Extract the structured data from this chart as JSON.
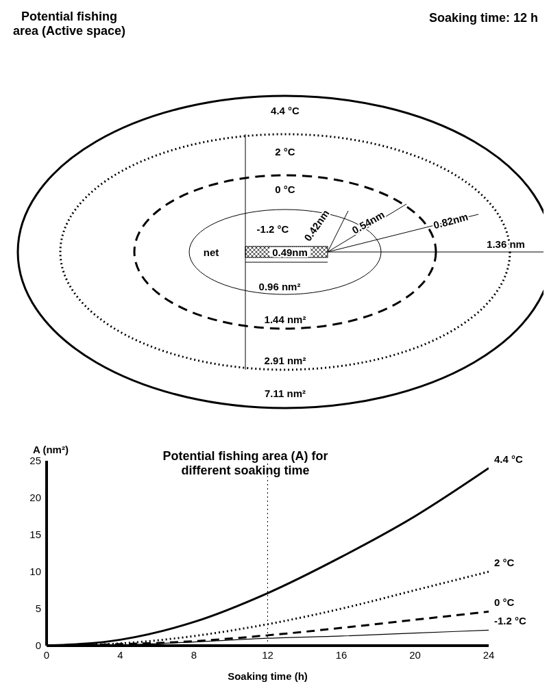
{
  "chart_data": [
    {
      "type": "other",
      "title": "Potential fishing area (Active space)",
      "subtitle": "Soaking time: 12 h",
      "annotations": [
        "4.4 °C",
        "2 °C",
        "0 °C",
        "-1.2 °C",
        "net",
        "0.49nm",
        "0.42nm",
        "0.54nm",
        "0.82nm",
        "1.36 nm",
        "0.96 nm²",
        "1.44 nm²",
        "2.91 nm²",
        "7.11 nm²"
      ]
    },
    {
      "type": "line",
      "title": "Potential fishing area (A) for different soaking time",
      "xlabel": "Soaking time (h)",
      "ylabel": "A (nm²)",
      "x": [
        0,
        4,
        8,
        12,
        16,
        20,
        24
      ],
      "xlim": [
        0,
        24
      ],
      "xticks": [
        0,
        4,
        8,
        12,
        16,
        20,
        24
      ],
      "ylim": [
        0,
        25
      ],
      "yticks": [
        0,
        5,
        10,
        15,
        20,
        25
      ],
      "grid": false,
      "legend": false,
      "series": [
        {
          "name": "4.4 °C",
          "color": "#000000",
          "line_style": "solid",
          "values": [
            0,
            0.8,
            3.2,
            7.1,
            12,
            17.5,
            24
          ]
        },
        {
          "name": "2 °C",
          "color": "#000000",
          "line_style": "dotted",
          "values": [
            0,
            0.3,
            1.3,
            2.9,
            5,
            7.5,
            10
          ]
        },
        {
          "name": "0 °C",
          "color": "#000000",
          "line_style": "dashed",
          "values": [
            0,
            0.2,
            0.6,
            1.4,
            2.4,
            3.5,
            4.6
          ]
        },
        {
          "name": "-1.2 °C",
          "color": "#000000",
          "line_style": "solid",
          "values": [
            0,
            0.1,
            0.5,
            1,
            1.3,
            1.7,
            2.1
          ]
        }
      ],
      "ref_lines": [
        {
          "axis": "x",
          "value": 12,
          "line_style": "dotted",
          "color": "#000000"
        }
      ]
    }
  ]
}
